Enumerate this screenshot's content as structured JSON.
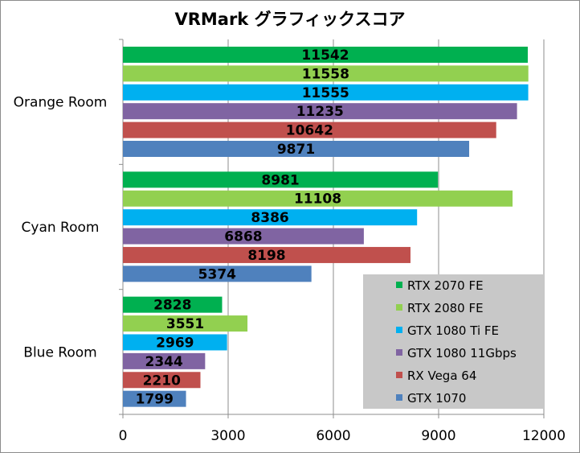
{
  "chart_data": {
    "type": "bar",
    "orientation": "horizontal",
    "title": "VRMark グラフィックスコア",
    "categories": [
      "Orange Room",
      "Cyan Room",
      "Blue Room"
    ],
    "series": [
      {
        "name": "RTX 2070 FE",
        "color": "#00b050",
        "values": [
          11542,
          8981,
          2828
        ]
      },
      {
        "name": "RTX 2080 FE",
        "color": "#92d050",
        "values": [
          11558,
          11108,
          3551
        ]
      },
      {
        "name": "GTX 1080 Ti FE",
        "color": "#00b0f0",
        "values": [
          11555,
          8386,
          2969
        ]
      },
      {
        "name": "GTX 1080 11Gbps",
        "color": "#8064a2",
        "values": [
          11235,
          6868,
          2344
        ]
      },
      {
        "name": "RX Vega 64",
        "color": "#c0504d",
        "values": [
          10642,
          8198,
          2210
        ]
      },
      {
        "name": "GTX 1070",
        "color": "#4f81bd",
        "values": [
          9871,
          5374,
          1799
        ]
      }
    ],
    "xlim": [
      0,
      12000
    ],
    "xticks": [
      0,
      3000,
      6000,
      9000,
      12000
    ],
    "xlabel": "",
    "ylabel": "",
    "grid": "vertical",
    "legend_position": "bottom-right",
    "data_labels": true
  }
}
